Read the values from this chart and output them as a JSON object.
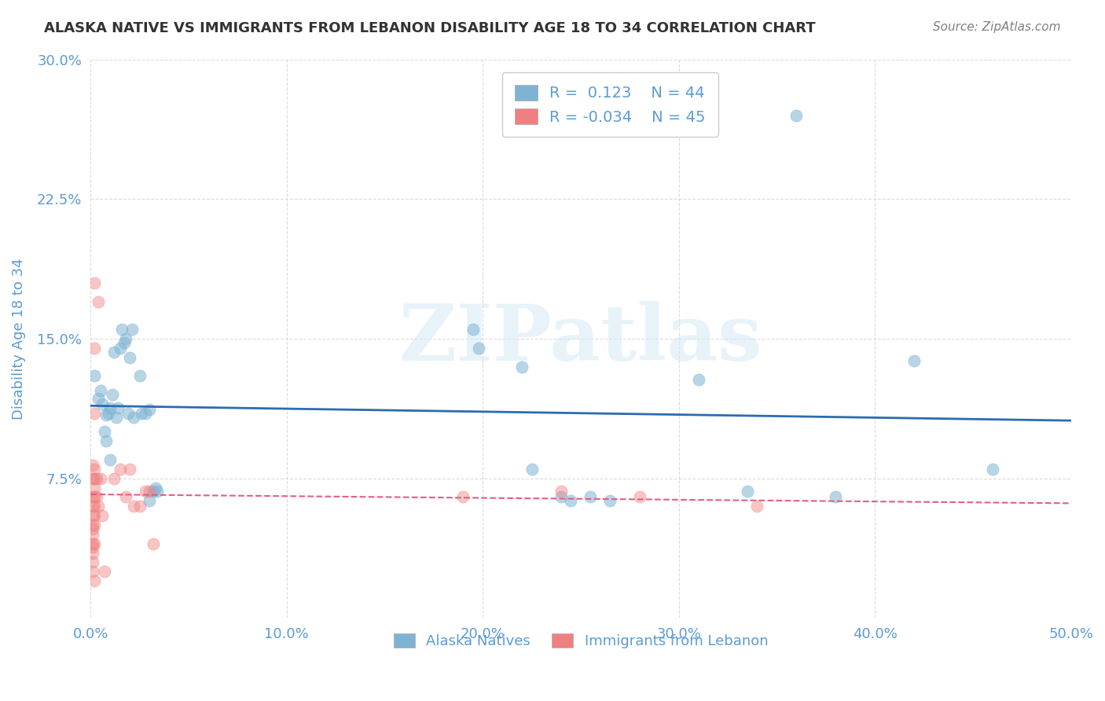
{
  "title": "ALASKA NATIVE VS IMMIGRANTS FROM LEBANON DISABILITY AGE 18 TO 34 CORRELATION CHART",
  "source": "Source: ZipAtlas.com",
  "xlabel_bottom": "",
  "ylabel": "Disability Age 18 to 34",
  "xlim": [
    0.0,
    0.5
  ],
  "ylim": [
    0.0,
    0.3
  ],
  "xticks": [
    0.0,
    0.1,
    0.2,
    0.3,
    0.4,
    0.5
  ],
  "yticks": [
    0.0,
    0.075,
    0.15,
    0.225,
    0.3
  ],
  "ytick_labels": [
    "",
    "7.5%",
    "15.0%",
    "22.5%",
    "30.0%"
  ],
  "xtick_labels": [
    "0.0%",
    "10.0%",
    "20.0%",
    "30.0%",
    "40.0%",
    "50.0%"
  ],
  "legend_entries": [
    {
      "label": "R =  0.123   N = 44",
      "color": "#a8c4e0"
    },
    {
      "label": "R = -0.034   N = 45",
      "color": "#f4a8b8"
    }
  ],
  "legend_bottom": [
    "Alaska Natives",
    "Immigrants from Lebanon"
  ],
  "watermark": "ZIPatlas",
  "alaska_R": 0.123,
  "alaska_N": 44,
  "lebanon_R": -0.034,
  "lebanon_N": 45,
  "alaska_color": "#7fb3d3",
  "lebanon_color": "#f08080",
  "alaska_line_color": "#2b6cb0",
  "lebanon_line_color": "#e06080",
  "background_color": "#ffffff",
  "grid_color": "#cccccc",
  "title_color": "#333333",
  "axis_label_color": "#5b9bd5",
  "tick_color": "#5b9bd5",
  "alaska_scatter": [
    [
      0.002,
      0.13
    ],
    [
      0.004,
      0.118
    ],
    [
      0.005,
      0.122
    ],
    [
      0.006,
      0.115
    ],
    [
      0.007,
      0.1
    ],
    [
      0.008,
      0.095
    ],
    [
      0.008,
      0.109
    ],
    [
      0.009,
      0.11
    ],
    [
      0.01,
      0.085
    ],
    [
      0.01,
      0.113
    ],
    [
      0.011,
      0.12
    ],
    [
      0.012,
      0.143
    ],
    [
      0.013,
      0.108
    ],
    [
      0.014,
      0.113
    ],
    [
      0.015,
      0.145
    ],
    [
      0.016,
      0.155
    ],
    [
      0.017,
      0.148
    ],
    [
      0.018,
      0.15
    ],
    [
      0.019,
      0.11
    ],
    [
      0.02,
      0.14
    ],
    [
      0.021,
      0.155
    ],
    [
      0.022,
      0.108
    ],
    [
      0.025,
      0.13
    ],
    [
      0.026,
      0.11
    ],
    [
      0.028,
      0.11
    ],
    [
      0.03,
      0.112
    ],
    [
      0.03,
      0.063
    ],
    [
      0.032,
      0.068
    ],
    [
      0.033,
      0.07
    ],
    [
      0.034,
      0.068
    ],
    [
      0.195,
      0.155
    ],
    [
      0.198,
      0.145
    ],
    [
      0.22,
      0.135
    ],
    [
      0.225,
      0.08
    ],
    [
      0.24,
      0.065
    ],
    [
      0.245,
      0.063
    ],
    [
      0.255,
      0.065
    ],
    [
      0.265,
      0.063
    ],
    [
      0.31,
      0.128
    ],
    [
      0.335,
      0.068
    ],
    [
      0.36,
      0.27
    ],
    [
      0.38,
      0.065
    ],
    [
      0.42,
      0.138
    ],
    [
      0.46,
      0.08
    ]
  ],
  "lebanon_scatter": [
    [
      0.001,
      0.082
    ],
    [
      0.001,
      0.075
    ],
    [
      0.001,
      0.065
    ],
    [
      0.001,
      0.06
    ],
    [
      0.001,
      0.055
    ],
    [
      0.001,
      0.05
    ],
    [
      0.001,
      0.048
    ],
    [
      0.001,
      0.045
    ],
    [
      0.001,
      0.04
    ],
    [
      0.001,
      0.038
    ],
    [
      0.001,
      0.035
    ],
    [
      0.001,
      0.03
    ],
    [
      0.001,
      0.025
    ],
    [
      0.002,
      0.18
    ],
    [
      0.002,
      0.145
    ],
    [
      0.002,
      0.11
    ],
    [
      0.002,
      0.08
    ],
    [
      0.002,
      0.075
    ],
    [
      0.002,
      0.07
    ],
    [
      0.002,
      0.065
    ],
    [
      0.002,
      0.06
    ],
    [
      0.002,
      0.055
    ],
    [
      0.002,
      0.05
    ],
    [
      0.002,
      0.04
    ],
    [
      0.002,
      0.02
    ],
    [
      0.003,
      0.075
    ],
    [
      0.003,
      0.065
    ],
    [
      0.004,
      0.17
    ],
    [
      0.004,
      0.06
    ],
    [
      0.005,
      0.075
    ],
    [
      0.006,
      0.055
    ],
    [
      0.007,
      0.025
    ],
    [
      0.012,
      0.075
    ],
    [
      0.015,
      0.08
    ],
    [
      0.018,
      0.065
    ],
    [
      0.02,
      0.08
    ],
    [
      0.022,
      0.06
    ],
    [
      0.025,
      0.06
    ],
    [
      0.028,
      0.068
    ],
    [
      0.03,
      0.068
    ],
    [
      0.032,
      0.04
    ],
    [
      0.19,
      0.065
    ],
    [
      0.24,
      0.068
    ],
    [
      0.28,
      0.065
    ],
    [
      0.34,
      0.06
    ]
  ]
}
